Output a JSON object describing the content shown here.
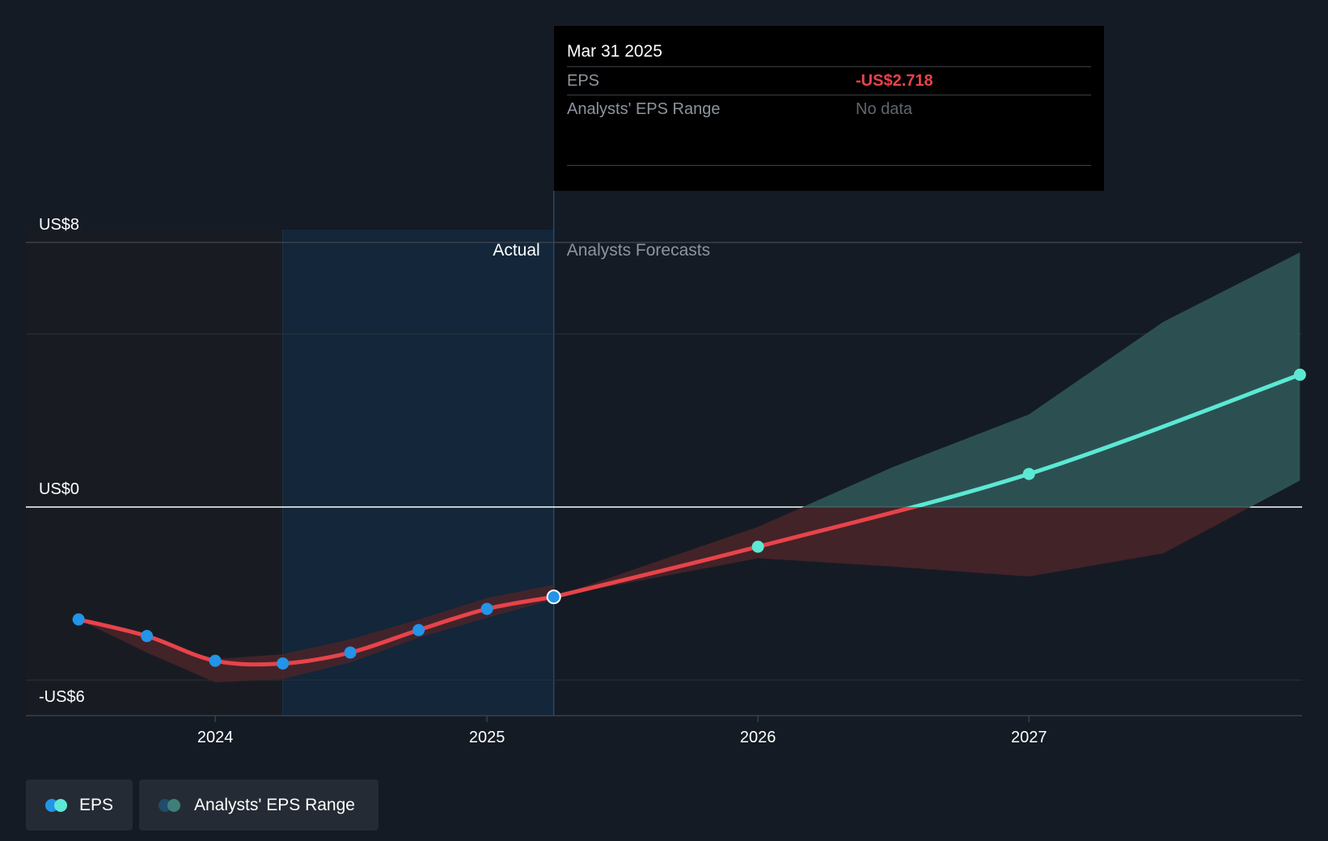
{
  "tooltip": {
    "date": "Mar 31 2025",
    "rows": [
      {
        "label": "EPS",
        "value": "-US$2.718"
      },
      {
        "label": "Analysts' EPS Range",
        "value": "No data"
      }
    ]
  },
  "legend": {
    "eps_label": "EPS",
    "range_label": "Analysts' EPS Range"
  },
  "colors": {
    "actual_line": "#e8434a",
    "actual_point": "#2394e8",
    "forecast_line": "#5ce8d4",
    "forecast_band": "#2f5756",
    "negative_band": "#4a2429",
    "highlight_region": "#13263a"
  },
  "chart_data": {
    "type": "line",
    "y_tick_labels": [
      "US$8",
      "US$0",
      "-US$6"
    ],
    "y_ticks": [
      8,
      0,
      -6
    ],
    "ylim": [
      -6.4,
      8
    ],
    "x_tick_labels": [
      "2024",
      "2025",
      "2026",
      "2027"
    ],
    "region_labels": {
      "actual": "Actual",
      "forecast": "Analysts Forecasts"
    },
    "highlight_date": "2025-03-31",
    "series": [
      {
        "name": "EPS",
        "kind": "actual",
        "points": [
          {
            "date": "2023-06-30",
            "value": -3.4
          },
          {
            "date": "2023-09-30",
            "value": -3.9
          },
          {
            "date": "2023-12-31",
            "value": -4.65
          },
          {
            "date": "2024-03-31",
            "value": -4.73
          },
          {
            "date": "2024-06-30",
            "value": -4.4
          },
          {
            "date": "2024-09-30",
            "value": -3.72
          },
          {
            "date": "2024-12-31",
            "value": -3.08
          },
          {
            "date": "2025-03-31",
            "value": -2.718
          }
        ]
      },
      {
        "name": "EPS",
        "kind": "forecast",
        "points": [
          {
            "date": "2025-03-31",
            "value": -2.718
          },
          {
            "date": "2025-12-31",
            "value": -1.2
          },
          {
            "date": "2026-12-31",
            "value": 1.0
          },
          {
            "date": "2027-12-31",
            "value": 4.0
          }
        ]
      }
    ],
    "actual_band": [
      {
        "date": "2023-06-30",
        "low": -3.4,
        "high": -3.4
      },
      {
        "date": "2023-09-30",
        "low": -4.4,
        "high": -3.95
      },
      {
        "date": "2023-12-31",
        "low": -5.3,
        "high": -4.6
      },
      {
        "date": "2024-03-31",
        "low": -5.2,
        "high": -4.45
      },
      {
        "date": "2024-06-30",
        "low": -4.7,
        "high": -4.0
      },
      {
        "date": "2024-09-30",
        "low": -3.95,
        "high": -3.4
      },
      {
        "date": "2024-12-31",
        "low": -3.35,
        "high": -2.75
      },
      {
        "date": "2025-03-31",
        "low": -2.8,
        "high": -2.35
      }
    ],
    "forecast_band": [
      {
        "date": "2025-03-31",
        "low": -2.718,
        "high": -2.718
      },
      {
        "date": "2025-12-31",
        "low": -1.55,
        "high": -0.6
      },
      {
        "date": "2026-06-30",
        "low": -1.8,
        "high": 1.2
      },
      {
        "date": "2026-12-31",
        "low": -2.1,
        "high": 2.8
      },
      {
        "date": "2027-06-30",
        "low": -1.4,
        "high": 5.6
      },
      {
        "date": "2027-12-31",
        "low": 0.8,
        "high": 7.7
      }
    ]
  }
}
